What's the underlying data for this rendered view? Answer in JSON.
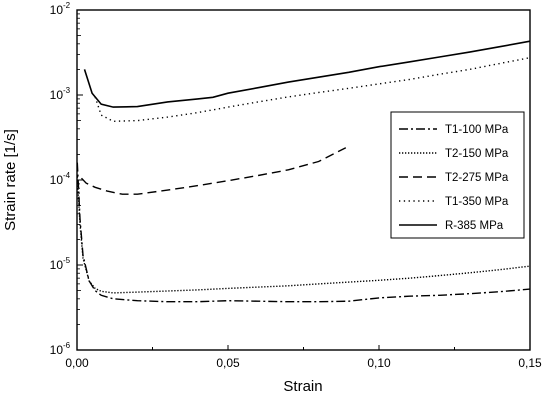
{
  "chart_data": {
    "type": "line",
    "xlabel": "Strain",
    "ylabel": "Strain rate [1/s]",
    "xlim": [
      0.0,
      0.15
    ],
    "ylim": [
      1e-06,
      0.01
    ],
    "yscale": "log",
    "grid": false,
    "legend_position": "right",
    "x_ticks": [
      {
        "value": 0.0,
        "label": "0,00"
      },
      {
        "value": 0.05,
        "label": "0,05"
      },
      {
        "value": 0.1,
        "label": "0,10"
      },
      {
        "value": 0.15,
        "label": "0,15"
      }
    ],
    "y_ticks": [
      {
        "value": 1e-06,
        "base": "10",
        "exp": "-6"
      },
      {
        "value": 1e-05,
        "base": "10",
        "exp": "-5"
      },
      {
        "value": 0.0001,
        "base": "10",
        "exp": "-4"
      },
      {
        "value": 0.001,
        "base": "10",
        "exp": "-3"
      },
      {
        "value": 0.01,
        "base": "10",
        "exp": "-2"
      }
    ],
    "series": [
      {
        "name": "T1-100 MPa",
        "dash": "dashdot",
        "points": [
          [
            0.0001,
            0.00016
          ],
          [
            0.001,
            3.5e-05
          ],
          [
            0.002,
            1.3e-05
          ],
          [
            0.004,
            6.5e-06
          ],
          [
            0.006,
            5e-06
          ],
          [
            0.008,
            4.4e-06
          ],
          [
            0.012,
            4e-06
          ],
          [
            0.02,
            3.8e-06
          ],
          [
            0.03,
            3.7e-06
          ],
          [
            0.04,
            3.7e-06
          ],
          [
            0.05,
            3.8e-06
          ],
          [
            0.06,
            3.75e-06
          ],
          [
            0.07,
            3.7e-06
          ],
          [
            0.08,
            3.7e-06
          ],
          [
            0.09,
            3.75e-06
          ],
          [
            0.1,
            4.1e-06
          ],
          [
            0.11,
            4.3e-06
          ],
          [
            0.12,
            4.4e-06
          ],
          [
            0.13,
            4.6e-06
          ],
          [
            0.14,
            4.85e-06
          ],
          [
            0.15,
            5.2e-06
          ]
        ]
      },
      {
        "name": "T2-150 MPa",
        "dash": "dot-dense",
        "points": [
          [
            0.0001,
            0.00011
          ],
          [
            0.001,
            3e-05
          ],
          [
            0.002,
            1.2e-05
          ],
          [
            0.004,
            6.5e-06
          ],
          [
            0.006,
            5.3e-06
          ],
          [
            0.008,
            4.9e-06
          ],
          [
            0.012,
            4.7e-06
          ],
          [
            0.02,
            4.8e-06
          ],
          [
            0.03,
            4.95e-06
          ],
          [
            0.04,
            5.1e-06
          ],
          [
            0.05,
            5.3e-06
          ],
          [
            0.06,
            5.5e-06
          ],
          [
            0.07,
            5.7e-06
          ],
          [
            0.08,
            6e-06
          ],
          [
            0.09,
            6.3e-06
          ],
          [
            0.1,
            6.6e-06
          ],
          [
            0.11,
            7e-06
          ],
          [
            0.12,
            7.5e-06
          ],
          [
            0.13,
            8.1e-06
          ],
          [
            0.14,
            8.8e-06
          ],
          [
            0.15,
            9.7e-06
          ]
        ]
      },
      {
        "name": "T2-275 MPa",
        "dash": "dash",
        "points": [
          [
            0.0015,
            0.000105
          ],
          [
            0.003,
            9.2e-05
          ],
          [
            0.006,
            8.2e-05
          ],
          [
            0.01,
            7.4e-05
          ],
          [
            0.015,
            6.8e-05
          ],
          [
            0.02,
            6.8e-05
          ],
          [
            0.03,
            7.6e-05
          ],
          [
            0.04,
            8.6e-05
          ],
          [
            0.05,
            9.8e-05
          ],
          [
            0.06,
            0.000113
          ],
          [
            0.07,
            0.000132
          ],
          [
            0.08,
            0.000165
          ],
          [
            0.089,
            0.00024
          ]
        ]
      },
      {
        "name": "T1-350 MPa",
        "dash": "dot-sparse",
        "points": [
          [
            0.006,
            0.00095
          ],
          [
            0.008,
            0.00058
          ],
          [
            0.012,
            0.00049
          ],
          [
            0.02,
            0.0005
          ],
          [
            0.03,
            0.00055
          ],
          [
            0.04,
            0.00062
          ],
          [
            0.05,
            0.00072
          ],
          [
            0.06,
            0.00083
          ],
          [
            0.07,
            0.00095
          ],
          [
            0.08,
            0.00107
          ],
          [
            0.09,
            0.0012
          ],
          [
            0.1,
            0.00135
          ],
          [
            0.11,
            0.00152
          ],
          [
            0.12,
            0.00175
          ],
          [
            0.13,
            0.002
          ],
          [
            0.14,
            0.00235
          ],
          [
            0.15,
            0.00275
          ]
        ]
      },
      {
        "name": "R-385 MPa",
        "dash": "solid",
        "points": [
          [
            0.0025,
            0.002
          ],
          [
            0.005,
            0.00105
          ],
          [
            0.008,
            0.00078
          ],
          [
            0.012,
            0.00072
          ],
          [
            0.02,
            0.00073
          ],
          [
            0.03,
            0.00083
          ],
          [
            0.04,
            0.0009
          ],
          [
            0.045,
            0.00094
          ],
          [
            0.05,
            0.00105
          ],
          [
            0.06,
            0.00122
          ],
          [
            0.07,
            0.00142
          ],
          [
            0.08,
            0.00162
          ],
          [
            0.09,
            0.00185
          ],
          [
            0.1,
            0.00215
          ],
          [
            0.11,
            0.00245
          ],
          [
            0.12,
            0.0028
          ],
          [
            0.13,
            0.0032
          ],
          [
            0.14,
            0.0037
          ],
          [
            0.15,
            0.0043
          ]
        ]
      }
    ]
  }
}
